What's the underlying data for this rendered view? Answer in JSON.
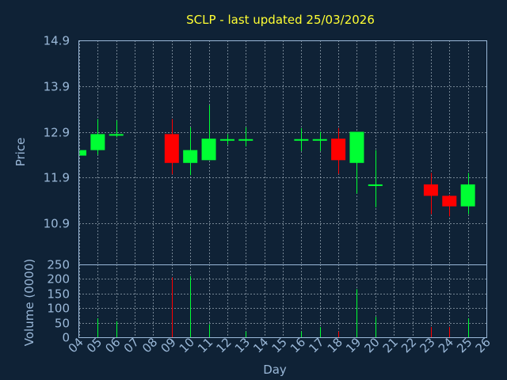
{
  "chart_data": {
    "type": "candlestick",
    "title": "SCLP - last updated 25/03/2026",
    "xlabel": "Day",
    "price_ylabel": "Price",
    "volume_ylabel": "Volume (0000)",
    "x_ticks": [
      "04",
      "05",
      "06",
      "07",
      "08",
      "09",
      "10",
      "11",
      "12",
      "13",
      "14",
      "15",
      "16",
      "17",
      "18",
      "19",
      "20",
      "21",
      "22",
      "23",
      "24",
      "25",
      "26"
    ],
    "price_ticks": [
      "14.9",
      "13.9",
      "12.9",
      "11.9",
      "10.9"
    ],
    "volume_ticks": [
      "250",
      "200",
      "150",
      "100",
      "50",
      "0"
    ],
    "price_ylim": [
      10.0,
      14.9
    ],
    "volume_ylim": [
      0,
      250
    ],
    "colors": {
      "up": "#00ff33",
      "down": "#ff0000",
      "text": "#9ab8d8",
      "title": "#ffff33",
      "background": "#0f2236"
    },
    "candles": [
      {
        "day": 4,
        "open": 12.38,
        "high": 12.5,
        "low": 12.38,
        "close": 12.5,
        "volume": 0
      },
      {
        "day": 5,
        "open": 12.5,
        "high": 13.18,
        "low": 12.4,
        "close": 12.85,
        "volume": 65
      },
      {
        "day": 6,
        "open": 12.83,
        "high": 13.15,
        "low": 12.78,
        "close": 12.85,
        "volume": 55
      },
      {
        "day": 9,
        "open": 12.85,
        "high": 13.18,
        "low": 11.97,
        "close": 12.22,
        "volume": 205
      },
      {
        "day": 10,
        "open": 12.22,
        "high": 13.0,
        "low": 11.95,
        "close": 12.5,
        "volume": 210
      },
      {
        "day": 11,
        "open": 12.28,
        "high": 13.48,
        "low": 12.28,
        "close": 12.75,
        "volume": 45
      },
      {
        "day": 12,
        "open": 12.72,
        "high": 12.85,
        "low": 12.62,
        "close": 12.74,
        "volume": 0
      },
      {
        "day": 13,
        "open": 12.72,
        "high": 13.0,
        "low": 12.58,
        "close": 12.74,
        "volume": 20
      },
      {
        "day": 16,
        "open": 12.72,
        "high": 12.98,
        "low": 12.48,
        "close": 12.74,
        "volume": 20
      },
      {
        "day": 17,
        "open": 12.72,
        "high": 12.9,
        "low": 12.48,
        "close": 12.74,
        "volume": 35
      },
      {
        "day": 18,
        "open": 12.75,
        "high": 12.98,
        "low": 11.98,
        "close": 12.28,
        "volume": 20
      },
      {
        "day": 19,
        "open": 12.22,
        "high": 12.9,
        "low": 11.55,
        "close": 12.9,
        "volume": 165
      },
      {
        "day": 20,
        "open": 11.73,
        "high": 12.5,
        "low": 11.25,
        "close": 11.75,
        "volume": 70
      },
      {
        "day": 23,
        "open": 11.75,
        "high": 12.0,
        "low": 11.1,
        "close": 11.5,
        "volume": 35
      },
      {
        "day": 24,
        "open": 11.5,
        "high": 11.52,
        "low": 11.05,
        "close": 11.27,
        "volume": 35
      },
      {
        "day": 25,
        "open": 11.27,
        "high": 12.0,
        "low": 11.1,
        "close": 11.75,
        "volume": 65
      }
    ]
  }
}
